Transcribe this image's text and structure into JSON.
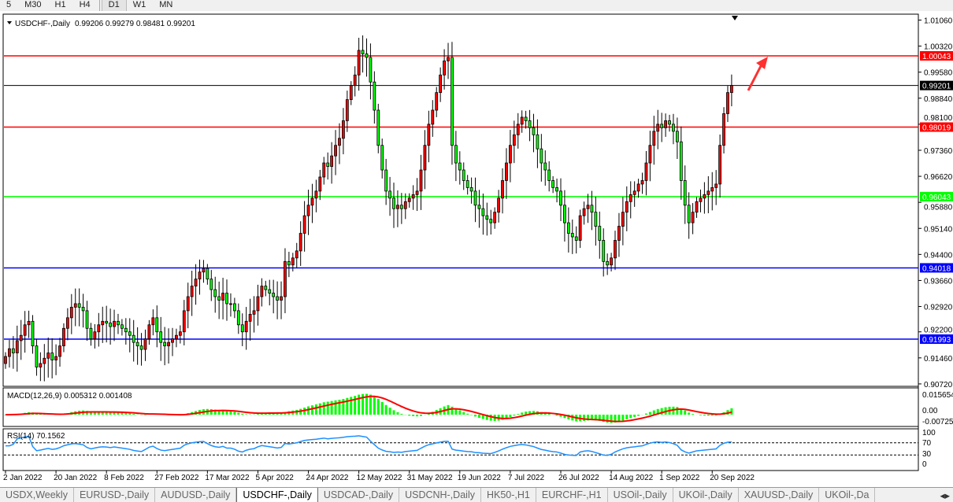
{
  "toolbar": {
    "timeframes": [
      "5",
      "M30",
      "H1",
      "H4",
      "D1",
      "W1",
      "MN"
    ],
    "active": "D1"
  },
  "chart": {
    "header": "USDCHF-,Daily",
    "ohlc": "0.99206 0.99279 0.98481 0.99201"
  },
  "colors": {
    "bull_body": "#ff0000",
    "bear_body": "#00ff00",
    "candle_outline": "#000000",
    "macd_hist": "#00ff00",
    "macd_signal": "#ff0000",
    "rsi": "#1e90ff",
    "arrow": "#ff3030"
  },
  "levels": [
    {
      "price": 1.00043,
      "label": "1.00043",
      "color": "#ff0000"
    },
    {
      "price": 0.99201,
      "label": "0.99201",
      "color": "#000000"
    },
    {
      "price": 0.98019,
      "label": "0.98019",
      "color": "#ff0000"
    },
    {
      "price": 0.96043,
      "label": "0.96043",
      "color": "#00ff00"
    },
    {
      "price": 0.94018,
      "label": "0.94018",
      "color": "#0000ff"
    },
    {
      "price": 0.91993,
      "label": "0.91993",
      "color": "#0000ff"
    }
  ],
  "chart_data": {
    "type": "candlestick",
    "symbol": "USDCHF-",
    "timeframe": "Daily",
    "price_ticks": [
      "1.01060",
      "1.00320",
      "0.99580",
      "0.98840",
      "0.98100",
      "0.97360",
      "0.96620",
      "0.95880",
      "0.95140",
      "0.94400",
      "0.93660",
      "0.92920",
      "0.92200",
      "0.91460",
      "0.90720"
    ],
    "ylim": [
      0.9072,
      1.0106
    ],
    "date_ticks": [
      "2 Jan 2022",
      "20 Jan 2022",
      "8 Feb 2022",
      "27 Feb 2022",
      "17 Mar 2022",
      "5 Apr 2022",
      "24 Apr 2022",
      "12 May 2022",
      "31 May 2022",
      "19 Jun 2022",
      "7 Jul 2022",
      "26 Jul 2022",
      "14 Aug 2022",
      "1 Sep 2022",
      "20 Sep 2022"
    ],
    "closes": [
      0.915,
      0.9172,
      0.916,
      0.9195,
      0.921,
      0.924,
      0.925,
      0.918,
      0.912,
      0.913,
      0.9145,
      0.916,
      0.914,
      0.915,
      0.918,
      0.923,
      0.926,
      0.929,
      0.93,
      0.929,
      0.928,
      0.923,
      0.92,
      0.922,
      0.924,
      0.925,
      0.9245,
      0.9235,
      0.925,
      0.924,
      0.923,
      0.922,
      0.921,
      0.919,
      0.918,
      0.917,
      0.92,
      0.924,
      0.926,
      0.922,
      0.919,
      0.918,
      0.919,
      0.92,
      0.921,
      0.922,
      0.928,
      0.932,
      0.935,
      0.937,
      0.939,
      0.94,
      0.937,
      0.934,
      0.932,
      0.931,
      0.933,
      0.93,
      0.93,
      0.928,
      0.924,
      0.922,
      0.925,
      0.927,
      0.928,
      0.932,
      0.935,
      0.934,
      0.933,
      0.932,
      0.931,
      0.932,
      0.942,
      0.941,
      0.943,
      0.945,
      0.95,
      0.955,
      0.958,
      0.96,
      0.962,
      0.966,
      0.97,
      0.969,
      0.972,
      0.975,
      0.977,
      0.982,
      0.988,
      0.992,
      0.995,
      1.002,
      1.001,
      1.0,
      0.993,
      0.985,
      0.975,
      0.968,
      0.962,
      0.96,
      0.957,
      0.958,
      0.957,
      0.959,
      0.96,
      0.961,
      0.962,
      0.968,
      0.975,
      0.981,
      0.985,
      0.99,
      0.995,
      0.999,
      1.0,
      0.975,
      0.97,
      0.968,
      0.965,
      0.963,
      0.962,
      0.958,
      0.957,
      0.955,
      0.954,
      0.953,
      0.956,
      0.96,
      0.965,
      0.97,
      0.975,
      0.978,
      0.981,
      0.983,
      0.982,
      0.98,
      0.978,
      0.974,
      0.97,
      0.968,
      0.965,
      0.963,
      0.962,
      0.958,
      0.953,
      0.95,
      0.949,
      0.948,
      0.955,
      0.957,
      0.958,
      0.956,
      0.952,
      0.948,
      0.942,
      0.941,
      0.943,
      0.948,
      0.952,
      0.956,
      0.959,
      0.961,
      0.962,
      0.964,
      0.965,
      0.97,
      0.975,
      0.979,
      0.981,
      0.98,
      0.982,
      0.981,
      0.979,
      0.976,
      0.965,
      0.958,
      0.953,
      0.956,
      0.959,
      0.96,
      0.961,
      0.962,
      0.963,
      0.964,
      0.975,
      0.984,
      0.99,
      0.99201
    ],
    "macd": {
      "label": "MACD(12,26,9) 0.005312 0.001408",
      "ticks": [
        "0.015654",
        "0.00",
        "-0.007259"
      ]
    },
    "rsi": {
      "label": "RSI(14) 70.1562",
      "ticks": [
        "100",
        "70",
        "30",
        "0"
      ],
      "levels": [
        70,
        30
      ]
    }
  },
  "tabs": [
    "USDX,Weekly",
    "EURUSD-,Daily",
    "AUDUSD-,Daily",
    "USDCHF-,Daily",
    "USDCAD-,Daily",
    "USDCNH-,Daily",
    "HK50-,H1",
    "EURCHF-,H1",
    "USOil-,Daily",
    "UKOil-,Daily",
    "XAUUSD-,Daily",
    "UKOil-,Da"
  ],
  "active_tab": "USDCHF-,Daily"
}
